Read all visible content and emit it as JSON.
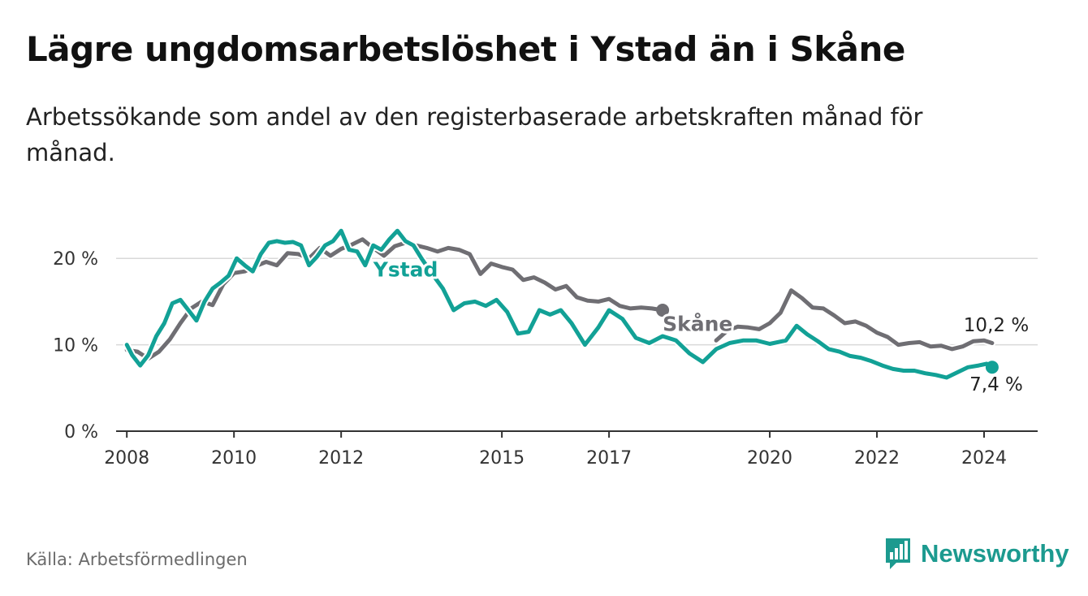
{
  "title": "Lägre ungdomsarbetslöshet i Ystad än i Skåne",
  "subtitle": "Arbetssökande som andel av den registerbaserade arbetskraften månad för månad.",
  "source": "Källa: Arbetsförmedlingen",
  "brand": {
    "name": "Newsworthy",
    "color": "#1c9a8f"
  },
  "colors": {
    "ystad": "#12a196",
    "skane": "#6f6e73",
    "grid": "#d9d9d9",
    "axis": "#333333"
  },
  "chart_data": {
    "type": "line",
    "title": "Lägre ungdomsarbetslöshet i Ystad än i Skåne",
    "xlabel": "",
    "ylabel": "",
    "xlim": [
      2007.8,
      2025.0
    ],
    "ylim": [
      0,
      25
    ],
    "y_ticks": [
      0,
      10,
      20
    ],
    "y_tick_labels": [
      "0 %",
      "10 %",
      "20 %"
    ],
    "x_ticks": [
      2008,
      2010,
      2012,
      2015,
      2017,
      2020,
      2022,
      2024
    ],
    "x_tick_labels": [
      "2008",
      "2010",
      "2012",
      "2015",
      "2017",
      "2020",
      "2022",
      "2024"
    ],
    "grid": true,
    "series": [
      {
        "name": "Skåne",
        "label": "Skåne",
        "end_label": "10,2 %",
        "points": [
          [
            2008.0,
            9.4
          ],
          [
            2008.2,
            9.2
          ],
          [
            2008.4,
            8.4
          ],
          [
            2008.6,
            9.2
          ],
          [
            2008.8,
            10.6
          ],
          [
            2009.0,
            12.5
          ],
          [
            2009.2,
            14.2
          ],
          [
            2009.4,
            15.0
          ],
          [
            2009.6,
            14.6
          ],
          [
            2009.8,
            17.0
          ],
          [
            2010.0,
            18.3
          ],
          [
            2010.2,
            18.5
          ],
          [
            2010.4,
            19.1
          ],
          [
            2010.6,
            19.6
          ],
          [
            2010.8,
            19.2
          ],
          [
            2011.0,
            20.6
          ],
          [
            2011.2,
            20.5
          ],
          [
            2011.4,
            20.0
          ],
          [
            2011.6,
            21.2
          ],
          [
            2011.8,
            20.3
          ],
          [
            2012.0,
            21.1
          ],
          [
            2012.2,
            21.6
          ],
          [
            2012.4,
            22.2
          ],
          [
            2012.6,
            21.2
          ],
          [
            2012.8,
            20.3
          ],
          [
            2013.0,
            21.4
          ],
          [
            2013.2,
            21.8
          ],
          [
            2013.4,
            21.5
          ],
          [
            2013.6,
            21.2
          ],
          [
            2013.8,
            20.8
          ],
          [
            2014.0,
            21.2
          ],
          [
            2014.2,
            21.0
          ],
          [
            2014.4,
            20.5
          ],
          [
            2014.6,
            18.2
          ],
          [
            2014.8,
            19.4
          ],
          [
            2015.0,
            19.0
          ],
          [
            2015.2,
            18.7
          ],
          [
            2015.4,
            17.5
          ],
          [
            2015.6,
            17.8
          ],
          [
            2015.8,
            17.2
          ],
          [
            2016.0,
            16.4
          ],
          [
            2016.2,
            16.8
          ],
          [
            2016.4,
            15.5
          ],
          [
            2016.6,
            15.1
          ],
          [
            2016.8,
            15.0
          ],
          [
            2017.0,
            15.3
          ],
          [
            2017.2,
            14.5
          ],
          [
            2017.4,
            14.2
          ],
          [
            2017.6,
            14.3
          ],
          [
            2017.8,
            14.2
          ],
          [
            2018.0,
            14.0
          ]
        ]
      },
      {
        "name": "Skåne",
        "label": "",
        "end_label": "",
        "points": [
          [
            2019.0,
            10.5
          ],
          [
            2019.2,
            11.6
          ],
          [
            2019.4,
            12.1
          ],
          [
            2019.6,
            12.0
          ],
          [
            2019.8,
            11.8
          ],
          [
            2020.0,
            12.5
          ],
          [
            2020.2,
            13.7
          ],
          [
            2020.4,
            16.3
          ],
          [
            2020.6,
            15.4
          ],
          [
            2020.8,
            14.3
          ],
          [
            2021.0,
            14.2
          ],
          [
            2021.2,
            13.4
          ],
          [
            2021.4,
            12.5
          ],
          [
            2021.6,
            12.7
          ],
          [
            2021.8,
            12.2
          ],
          [
            2022.0,
            11.4
          ],
          [
            2022.2,
            10.9
          ],
          [
            2022.4,
            10.0
          ],
          [
            2022.6,
            10.2
          ],
          [
            2022.8,
            10.3
          ],
          [
            2023.0,
            9.8
          ],
          [
            2023.2,
            9.9
          ],
          [
            2023.4,
            9.5
          ],
          [
            2023.6,
            9.8
          ],
          [
            2023.8,
            10.4
          ],
          [
            2024.0,
            10.5
          ],
          [
            2024.15,
            10.2
          ]
        ]
      },
      {
        "name": "Ystad",
        "label": "Ystad",
        "end_label": "7,4 %",
        "points": [
          [
            2008.0,
            10.0
          ],
          [
            2008.1,
            8.8
          ],
          [
            2008.25,
            7.6
          ],
          [
            2008.4,
            8.8
          ],
          [
            2008.55,
            11.0
          ],
          [
            2008.7,
            12.5
          ],
          [
            2008.85,
            14.8
          ],
          [
            2009.0,
            15.2
          ],
          [
            2009.15,
            14.0
          ],
          [
            2009.3,
            12.8
          ],
          [
            2009.45,
            15.0
          ],
          [
            2009.6,
            16.5
          ],
          [
            2009.75,
            17.2
          ],
          [
            2009.9,
            18.0
          ],
          [
            2010.05,
            20.0
          ],
          [
            2010.2,
            19.2
          ],
          [
            2010.35,
            18.5
          ],
          [
            2010.5,
            20.5
          ],
          [
            2010.65,
            21.8
          ],
          [
            2010.8,
            22.0
          ],
          [
            2010.95,
            21.8
          ],
          [
            2011.1,
            21.9
          ],
          [
            2011.25,
            21.5
          ],
          [
            2011.4,
            19.2
          ],
          [
            2011.55,
            20.2
          ],
          [
            2011.7,
            21.5
          ],
          [
            2011.85,
            22.0
          ],
          [
            2012.0,
            23.2
          ],
          [
            2012.15,
            21.0
          ],
          [
            2012.3,
            20.8
          ],
          [
            2012.45,
            19.2
          ],
          [
            2012.6,
            21.5
          ],
          [
            2012.75,
            21.0
          ],
          [
            2012.9,
            22.2
          ],
          [
            2013.05,
            23.2
          ],
          [
            2013.2,
            22.0
          ],
          [
            2013.35,
            21.5
          ],
          [
            2013.5,
            20.0
          ],
          [
            2013.7,
            18.2
          ],
          [
            2013.9,
            16.5
          ],
          [
            2014.1,
            14.0
          ],
          [
            2014.3,
            14.8
          ],
          [
            2014.5,
            15.0
          ],
          [
            2014.7,
            14.5
          ],
          [
            2014.9,
            15.2
          ],
          [
            2015.1,
            13.8
          ],
          [
            2015.3,
            11.3
          ],
          [
            2015.5,
            11.5
          ],
          [
            2015.7,
            14.0
          ],
          [
            2015.9,
            13.5
          ],
          [
            2016.1,
            14.0
          ],
          [
            2016.3,
            12.5
          ],
          [
            2016.55,
            10.0
          ],
          [
            2016.8,
            12.0
          ],
          [
            2017.0,
            14.0
          ],
          [
            2017.25,
            13.0
          ],
          [
            2017.5,
            10.8
          ],
          [
            2017.75,
            10.2
          ],
          [
            2018.0,
            11.0
          ],
          [
            2018.25,
            10.5
          ],
          [
            2018.5,
            9.0
          ],
          [
            2018.75,
            8.0
          ],
          [
            2019.0,
            9.5
          ],
          [
            2019.25,
            10.2
          ],
          [
            2019.5,
            10.5
          ],
          [
            2019.75,
            10.5
          ],
          [
            2020.0,
            10.1
          ],
          [
            2020.3,
            10.5
          ],
          [
            2020.5,
            12.2
          ],
          [
            2020.7,
            11.2
          ],
          [
            2020.9,
            10.4
          ],
          [
            2021.1,
            9.5
          ],
          [
            2021.3,
            9.2
          ],
          [
            2021.5,
            8.7
          ],
          [
            2021.7,
            8.5
          ],
          [
            2021.9,
            8.1
          ],
          [
            2022.1,
            7.6
          ],
          [
            2022.3,
            7.2
          ],
          [
            2022.5,
            7.0
          ],
          [
            2022.7,
            7.0
          ],
          [
            2022.9,
            6.7
          ],
          [
            2023.1,
            6.5
          ],
          [
            2023.3,
            6.2
          ],
          [
            2023.5,
            6.8
          ],
          [
            2023.7,
            7.4
          ],
          [
            2023.9,
            7.6
          ],
          [
            2024.05,
            7.8
          ],
          [
            2024.15,
            7.4
          ]
        ]
      }
    ]
  }
}
